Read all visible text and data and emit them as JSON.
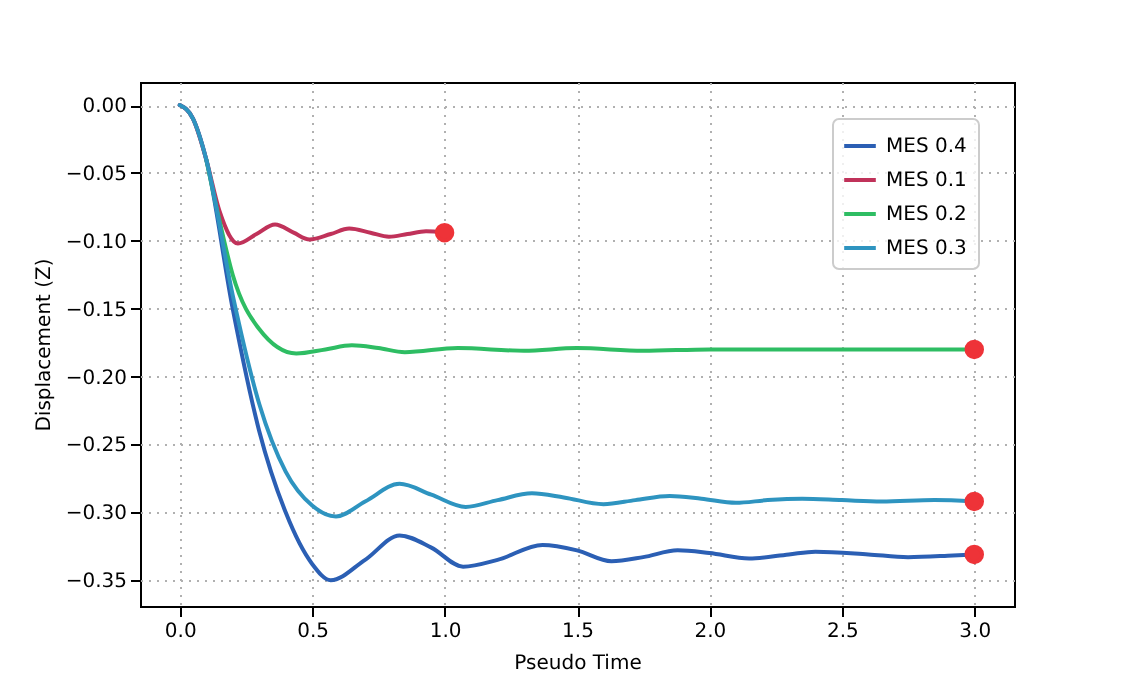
{
  "chart_data": {
    "type": "line",
    "xlabel": "Pseudo Time",
    "ylabel": "Displacement (Z)",
    "xlim": [
      -0.15,
      3.15
    ],
    "ylim": [
      -0.369,
      0.017
    ],
    "xticks": [
      {
        "value": 0,
        "label": "0.0"
      },
      {
        "value": 0.5,
        "label": "0.5"
      },
      {
        "value": 1,
        "label": "1.0"
      },
      {
        "value": 1.5,
        "label": "1.5"
      },
      {
        "value": 2,
        "label": "2.0"
      },
      {
        "value": 2.5,
        "label": "2.5"
      },
      {
        "value": 3,
        "label": "3.0"
      }
    ],
    "yticks": [
      {
        "value": 0,
        "label": "0.00"
      },
      {
        "value": -0.05,
        "label": "−0.05"
      },
      {
        "value": -0.1,
        "label": "−0.10"
      },
      {
        "value": -0.15,
        "label": "−0.15"
      },
      {
        "value": -0.2,
        "label": "−0.20"
      },
      {
        "value": -0.25,
        "label": "−0.25"
      },
      {
        "value": -0.3,
        "label": "−0.30"
      },
      {
        "value": -0.35,
        "label": "−0.35"
      }
    ],
    "grid": true,
    "legend": "top right",
    "line_style": "solid",
    "series": [
      {
        "name": "MES 0.4",
        "color": "#2b5fb4",
        "x": [
          0,
          0.05,
          0.1,
          0.2,
          0.3,
          0.4,
          0.5,
          0.57,
          0.7,
          0.83,
          0.95,
          1.07,
          1.2,
          1.37,
          1.5,
          1.63,
          1.75,
          1.88,
          2.0,
          2.15,
          2.3,
          2.4,
          2.6,
          2.75,
          2.9,
          3.0
        ],
        "values": [
          0,
          -0.01,
          -0.04,
          -0.15,
          -0.24,
          -0.3,
          -0.338,
          -0.35,
          -0.335,
          -0.317,
          -0.326,
          -0.34,
          -0.335,
          -0.324,
          -0.328,
          -0.336,
          -0.333,
          -0.328,
          -0.33,
          -0.334,
          -0.331,
          -0.329,
          -0.331,
          -0.333,
          -0.332,
          -0.331
        ]
      },
      {
        "name": "MES 0.1",
        "color": "#c0325a",
        "x": [
          0,
          0.05,
          0.1,
          0.15,
          0.22,
          0.29,
          0.36,
          0.43,
          0.49,
          0.57,
          0.64,
          0.72,
          0.79,
          0.86,
          0.93,
          1.0
        ],
        "values": [
          0,
          -0.01,
          -0.04,
          -0.078,
          -0.102,
          -0.095,
          -0.088,
          -0.094,
          -0.099,
          -0.095,
          -0.091,
          -0.094,
          -0.097,
          -0.095,
          -0.093,
          -0.094
        ]
      },
      {
        "name": "MES 0.2",
        "color": "#2ebd63",
        "x": [
          0.1,
          0.15,
          0.2,
          0.3,
          0.44,
          0.55,
          0.65,
          0.75,
          0.85,
          1.05,
          1.3,
          1.5,
          1.75,
          2.0,
          2.5,
          3.0
        ],
        "values": [
          -0.04,
          -0.085,
          -0.125,
          -0.165,
          -0.183,
          -0.18,
          -0.177,
          -0.179,
          -0.182,
          -0.179,
          -0.181,
          -0.179,
          -0.181,
          -0.18,
          -0.18,
          -0.18
        ]
      },
      {
        "name": "MES 0.3",
        "color": "#2e94c0",
        "x": [
          0,
          0.05,
          0.1,
          0.2,
          0.3,
          0.4,
          0.5,
          0.59,
          0.7,
          0.83,
          0.95,
          1.08,
          1.2,
          1.33,
          1.45,
          1.6,
          1.72,
          1.85,
          1.97,
          2.1,
          2.22,
          2.35,
          2.5,
          2.65,
          2.85,
          3.0
        ],
        "values": [
          0,
          -0.01,
          -0.04,
          -0.14,
          -0.22,
          -0.27,
          -0.295,
          -0.303,
          -0.292,
          -0.279,
          -0.287,
          -0.296,
          -0.291,
          -0.286,
          -0.289,
          -0.294,
          -0.291,
          -0.288,
          -0.29,
          -0.293,
          -0.291,
          -0.29,
          -0.291,
          -0.292,
          -0.291,
          -0.292
        ]
      },
      {
        "type": "scatter",
        "color": "#ee3338",
        "marker": "circle",
        "x": [
          1.0,
          3.0,
          3.0,
          3.0
        ],
        "values": [
          -0.094,
          -0.18,
          -0.292,
          -0.331
        ]
      }
    ]
  }
}
